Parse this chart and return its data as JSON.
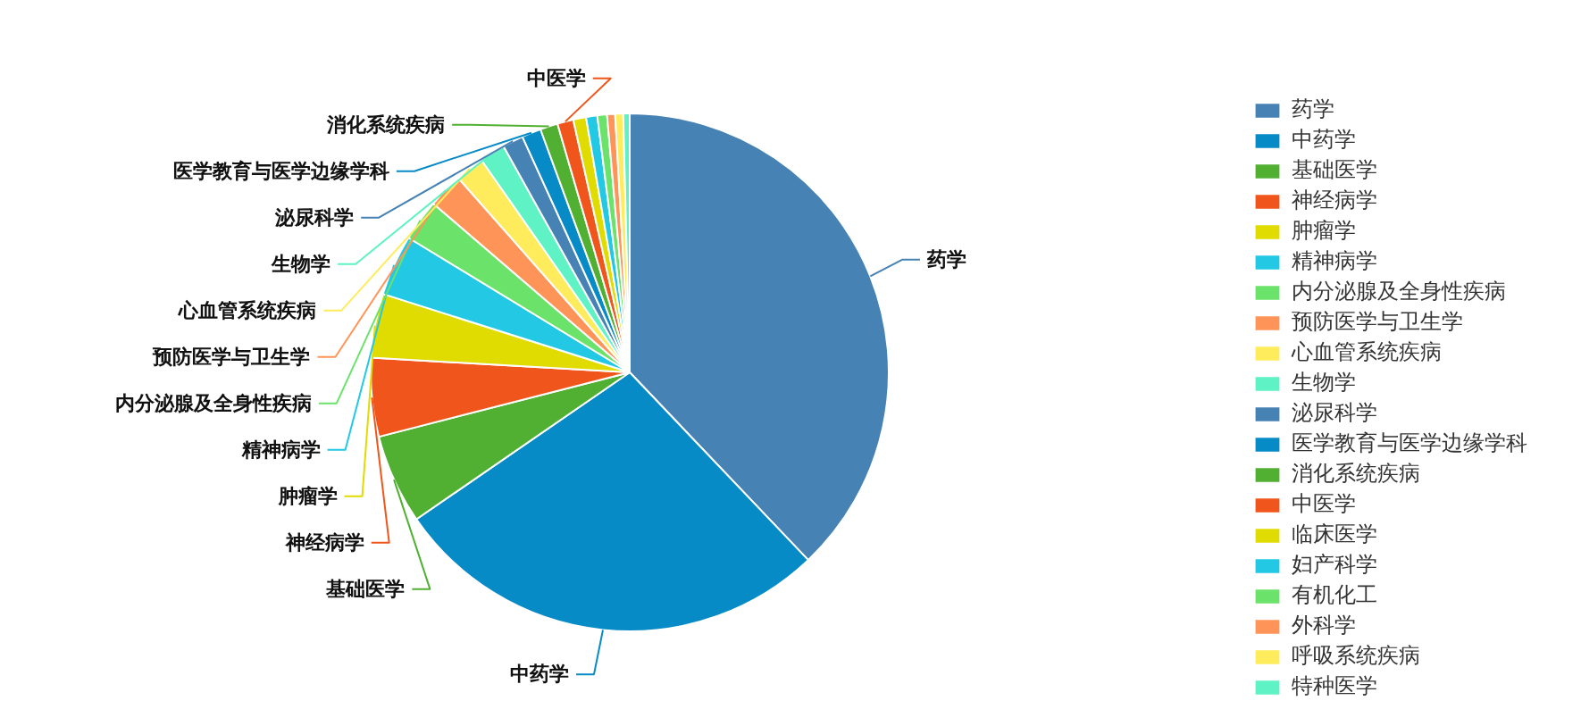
{
  "chart_data": {
    "type": "pie",
    "categories": [
      "药学",
      "中药学",
      "基础医学",
      "神经病学",
      "肿瘤学",
      "精神病学",
      "内分泌腺及全身性疾病",
      "预防医学与卫生学",
      "心血管系统疾病",
      "生物学",
      "泌尿科学",
      "医学教育与医学边缘学科",
      "消化系统疾病",
      "中医学",
      "临床医学",
      "妇产科学",
      "有机化工",
      "外科学",
      "呼吸系统疾病",
      "特种医学"
    ],
    "values": [
      37.9,
      27.5,
      5.6,
      4.9,
      4.0,
      3.8,
      2.6,
      2.2,
      1.8,
      1.6,
      1.3,
      1.2,
      1.1,
      1.0,
      0.8,
      0.7,
      0.6,
      0.5,
      0.5,
      0.4
    ],
    "colors": [
      "#4682b4",
      "#078bc7",
      "#51b032",
      "#f0561c",
      "#e0db00",
      "#22c8e4",
      "#6be36b",
      "#ff9459",
      "#ffec5c",
      "#5ef2c4",
      "#4682b4",
      "#078bc7",
      "#51b032",
      "#f0561c",
      "#e0db00",
      "#22c8e4",
      "#6be36b",
      "#ff9459",
      "#ffec5c",
      "#5ef2c4"
    ],
    "legend": "right"
  }
}
